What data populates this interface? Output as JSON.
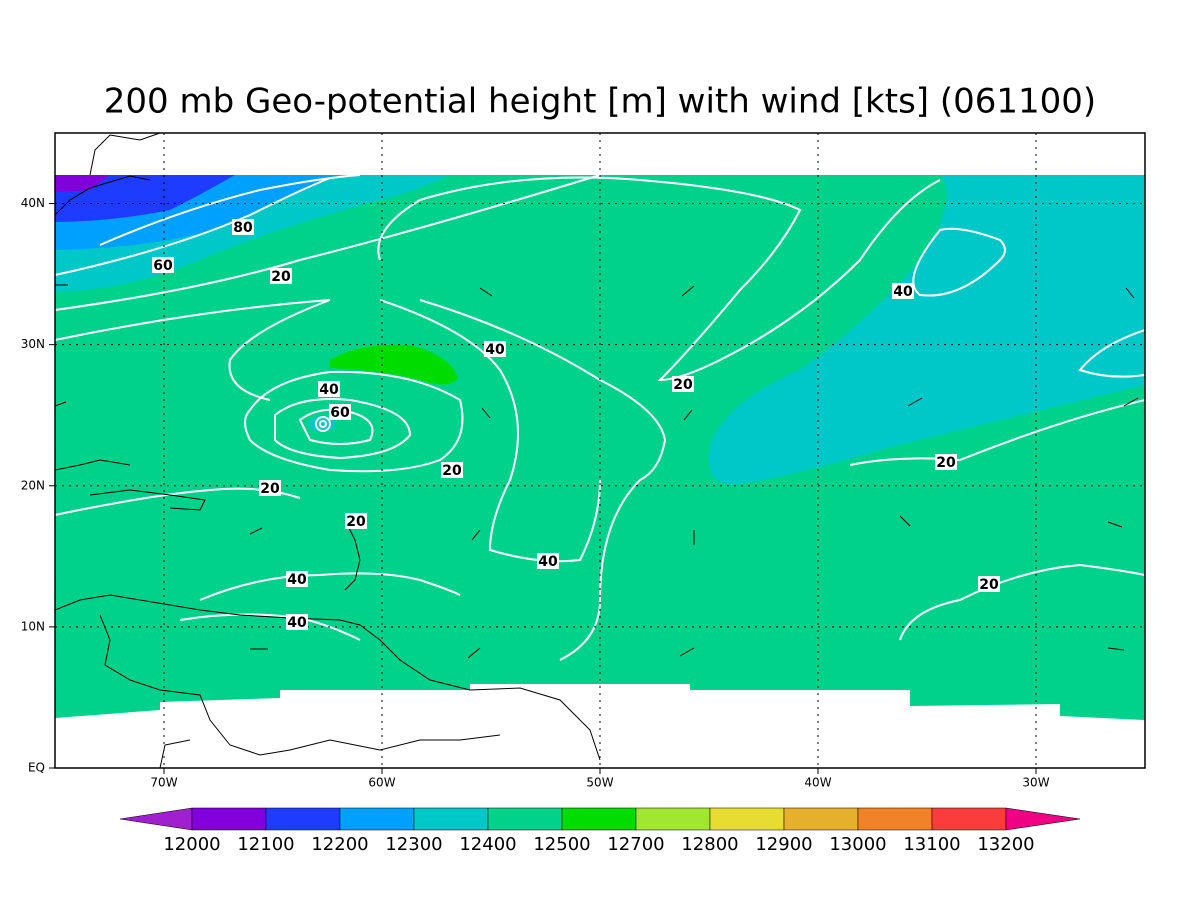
{
  "title": "200 mb Geo-potential height [m] with wind [kts] (061100)",
  "map": {
    "x_ticks": [
      {
        "value": -70,
        "label": "70W"
      },
      {
        "value": -60,
        "label": "60W"
      },
      {
        "value": -50,
        "label": "50W"
      },
      {
        "value": -40,
        "label": "40W"
      },
      {
        "value": -30,
        "label": "30W"
      }
    ],
    "y_ticks": [
      {
        "value": 0,
        "label": "EQ"
      },
      {
        "value": 10,
        "label": "10N"
      },
      {
        "value": 20,
        "label": "20N"
      },
      {
        "value": 30,
        "label": "30N"
      },
      {
        "value": 40,
        "label": "40N"
      }
    ],
    "contour_labels": [
      "80",
      "60",
      "20",
      "40",
      "40",
      "60",
      "20",
      "40",
      "20",
      "20",
      "20",
      "20",
      "40",
      "40",
      "20",
      "40"
    ]
  },
  "colorbar": {
    "levels": [
      12000,
      12100,
      12200,
      12300,
      12400,
      12500,
      12700,
      12800,
      12900,
      13000,
      13100,
      13200
    ],
    "colors": [
      "#a020d0",
      "#8200dc",
      "#1e3cff",
      "#00a0ff",
      "#00c8c8",
      "#00d28c",
      "#00dc00",
      "#a0e632",
      "#e6dc32",
      "#e6af2d",
      "#f08228",
      "#fa3c3c",
      "#f00082"
    ]
  }
}
